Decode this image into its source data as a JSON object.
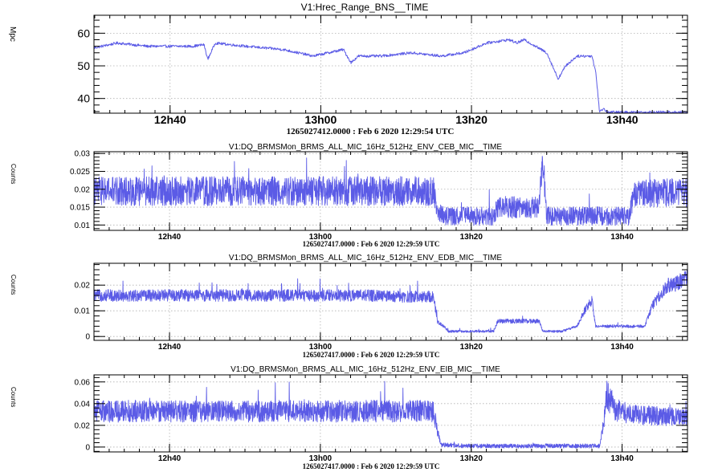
{
  "colors": {
    "series": "#5b5be6",
    "grid": "#b0b0b0",
    "frame": "#000000"
  },
  "chart_data": [
    {
      "type": "line",
      "title": "V1:Hrec_Range_BNS__TIME",
      "ylabel": "Mpc",
      "footer": "1265027412.0000 : Feb  6 2020 12:29:54 UTC",
      "xlim": [
        "12:29:54",
        "13:48:40"
      ],
      "ylim": [
        35.5,
        65.5
      ],
      "x_ticks": [
        "12h40",
        "13h00",
        "13h20",
        "13h40"
      ],
      "y_ticks": [
        40,
        50,
        60
      ],
      "grid": true,
      "noise": 0.4,
      "series": [
        {
          "x": [
            "12:29:54",
            "12:33:00",
            "12:37:00",
            "12:41:00",
            "12:43:00",
            "12:44:30",
            "12:45:00",
            "12:46:00",
            "12:50:00",
            "12:55:00",
            "12:59:00",
            "13:03:00",
            "13:04:00",
            "13:05:00",
            "13:08:00",
            "13:12:00",
            "13:16:00",
            "13:19:00",
            "13:22:00",
            "13:25:00",
            "13:26:00",
            "13:27:00",
            "13:30:00",
            "13:31:30",
            "13:32:30",
            "13:34:00",
            "13:36:00",
            "13:36:30",
            "13:37:00",
            "13:37:30",
            "13:38:00"
          ],
          "values": [
            55.5,
            57,
            56,
            56,
            56,
            56.5,
            52,
            57,
            56,
            55,
            53,
            55,
            51,
            53,
            53,
            54,
            53,
            54,
            57,
            58,
            57,
            58,
            54,
            46,
            50,
            53,
            53,
            48,
            35.8,
            37,
            35.8
          ]
        }
      ]
    },
    {
      "type": "line",
      "title": "V1:DQ_BRMSMon_BRMS_ALL_MIC_16Hz_512Hz_ENV_CEB_MIC__TIME",
      "ylabel": "Counts",
      "footer": "1265027417.0000 : Feb  6 2020 12:29:59 UTC",
      "xlim": [
        "12:29:59",
        "13:48:40"
      ],
      "ylim": [
        0.0085,
        0.0305
      ],
      "x_ticks": [
        "12h40",
        "13h00",
        "13h20",
        "13h40"
      ],
      "y_ticks": [
        0.01,
        0.015,
        0.02,
        0.025,
        0.03
      ],
      "grid": true,
      "noise": 0.0045,
      "series": [
        {
          "x": [
            "12:29:59",
            "12:40:00",
            "13:00:00",
            "13:10:00",
            "13:15:00",
            "13:15:30",
            "13:16:30",
            "13:22:00",
            "13:23:00",
            "13:23:30",
            "13:29:00",
            "13:29:30",
            "13:30:00",
            "13:40:00",
            "13:41:00",
            "13:41:30",
            "13:43:00",
            "13:48:40"
          ],
          "values": [
            0.0195,
            0.0195,
            0.0195,
            0.0195,
            0.0195,
            0.0135,
            0.0125,
            0.0125,
            0.0125,
            0.015,
            0.015,
            0.03,
            0.0125,
            0.0125,
            0.0125,
            0.018,
            0.019,
            0.019
          ]
        }
      ]
    },
    {
      "type": "line",
      "title": "V1:DQ_BRMSMon_BRMS_ALL_MIC_16Hz_512Hz_ENV_EDB_MIC__TIME",
      "ylabel": "Counts",
      "footer": "1265027417.0000 : Feb  6 2020 12:29:59 UTC",
      "xlim": [
        "12:29:59",
        "13:48:40"
      ],
      "ylim": [
        -0.0015,
        0.0285
      ],
      "x_ticks": [
        "12h40",
        "13h00",
        "13h20",
        "13h40"
      ],
      "y_ticks": [
        0,
        0.01,
        0.02
      ],
      "grid": true,
      "noise": 0.0025,
      "series": [
        {
          "x": [
            "12:29:59",
            "12:40:00",
            "12:50:00",
            "12:56:00",
            "13:00:00",
            "13:06:00",
            "13:10:00",
            "13:15:00",
            "13:15:30",
            "13:16:30",
            "13:17:00",
            "13:23:00",
            "13:23:30",
            "13:29:00",
            "13:29:30",
            "13:32:00",
            "13:34:00",
            "13:35:00",
            "13:36:00",
            "13:36:30",
            "13:43:00",
            "13:44:00",
            "13:46:00",
            "13:47:00",
            "13:48:40"
          ],
          "values": [
            0.016,
            0.016,
            0.016,
            0.016,
            0.016,
            0.016,
            0.0155,
            0.0155,
            0.006,
            0.0035,
            0.002,
            0.002,
            0.006,
            0.006,
            0.002,
            0.002,
            0.004,
            0.01,
            0.014,
            0.004,
            0.004,
            0.012,
            0.02,
            0.02,
            0.024
          ]
        }
      ]
    },
    {
      "type": "line",
      "title": "V1:DQ_BRMSMon_BRMS_ALL_MIC_16Hz_512Hz_ENV_EIB_MIC__TIME",
      "ylabel": "Counts",
      "footer": "1265027417.0000 : Feb  6 2020 12:29:59 UTC",
      "xlim": [
        "12:29:59",
        "13:48:40"
      ],
      "ylim": [
        -0.0045,
        0.0665
      ],
      "x_ticks": [
        "12h40",
        "13h00",
        "13h20",
        "13h40"
      ],
      "y_ticks": [
        0,
        0.02,
        0.04,
        0.06
      ],
      "grid": true,
      "noise": 0.011,
      "series": [
        {
          "x": [
            "12:29:59",
            "12:40:00",
            "12:50:00",
            "13:00:00",
            "13:10:00",
            "13:15:00",
            "13:15:30",
            "13:16:00",
            "13:20:00",
            "13:30:00",
            "13:37:00",
            "13:37:30",
            "13:38:00",
            "13:39:00",
            "13:41:00",
            "13:48:40"
          ],
          "values": [
            0.033,
            0.033,
            0.033,
            0.033,
            0.033,
            0.033,
            0.015,
            0.002,
            0.001,
            0.001,
            0.001,
            0.02,
            0.05,
            0.035,
            0.03,
            0.027
          ]
        }
      ]
    }
  ]
}
